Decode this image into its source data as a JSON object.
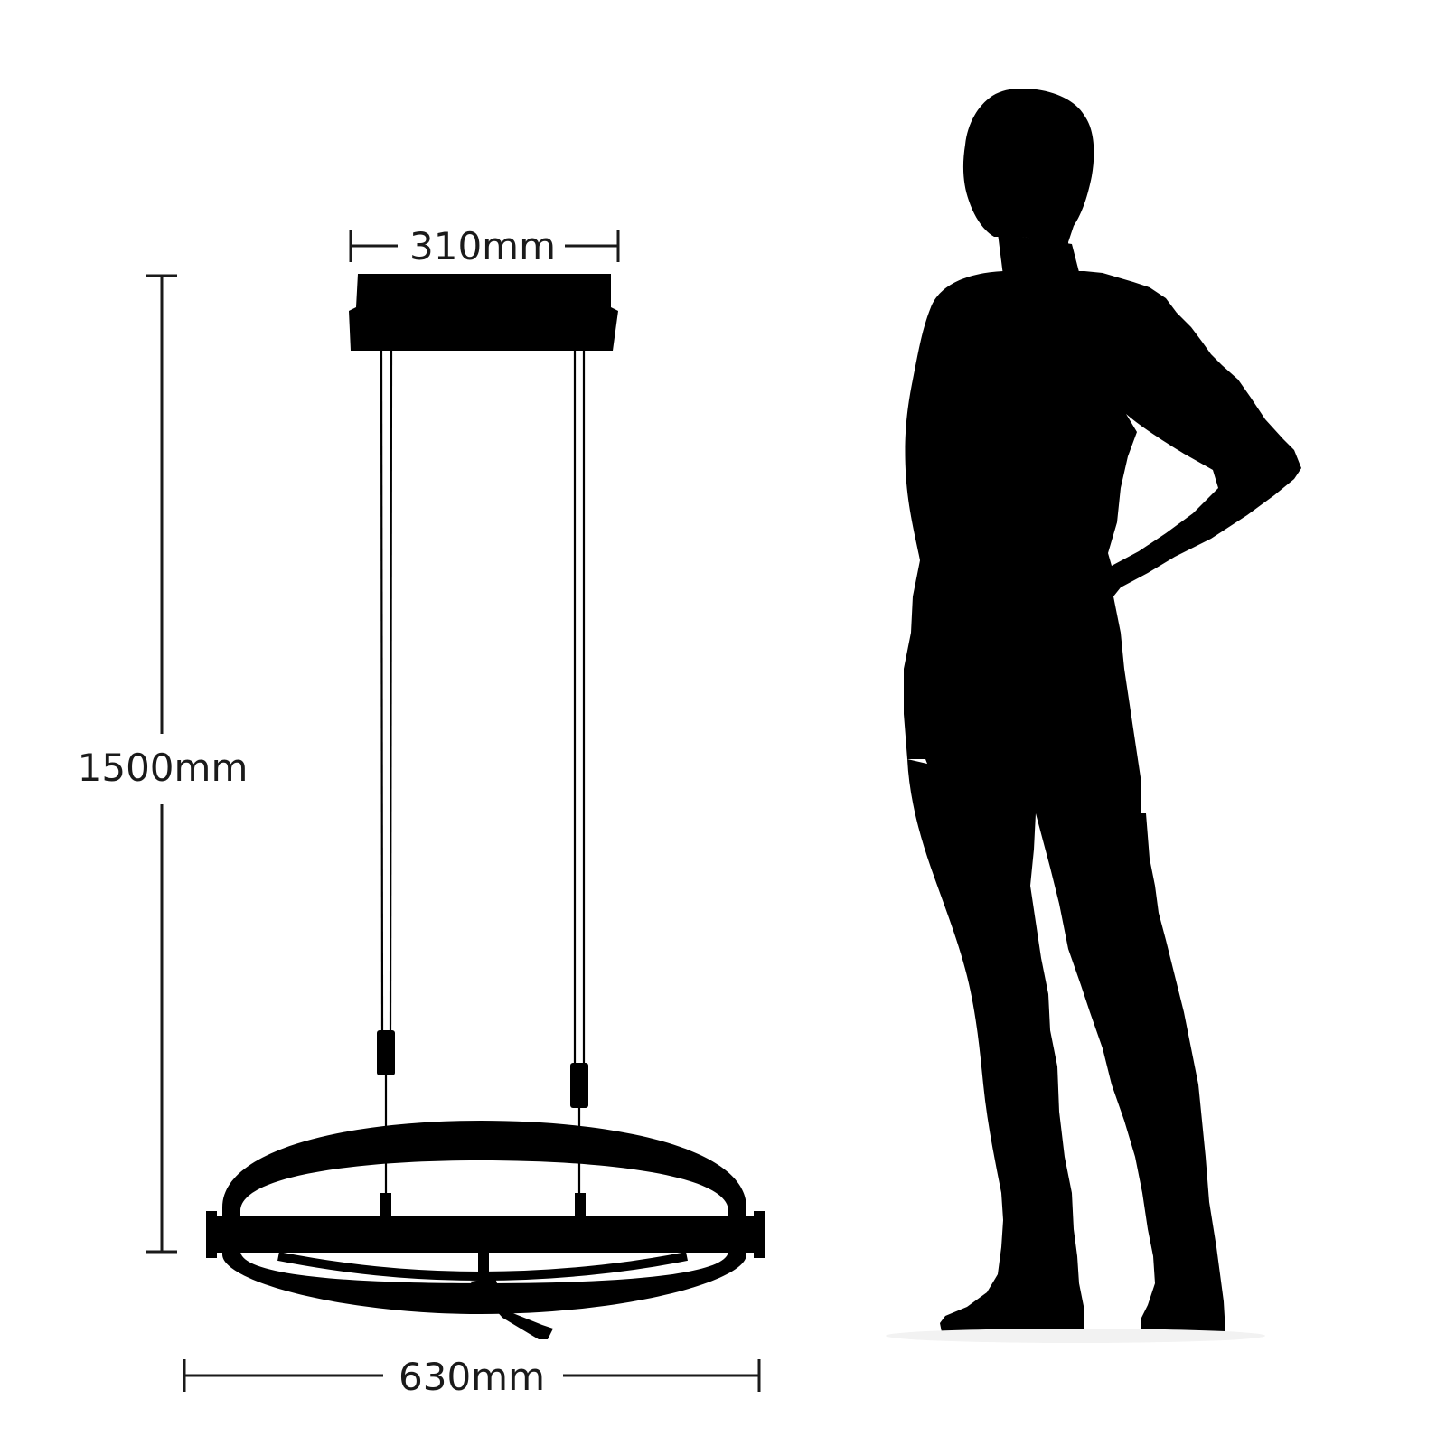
{
  "dimensions": {
    "canopy_width": "310mm",
    "overall_height": "1500mm",
    "ring_diameter": "630mm"
  },
  "colors": {
    "silhouette": "#000000",
    "dimension_line": "#1a1a1a",
    "label": "#1a1a1a",
    "background": "#ffffff"
  },
  "icons": {
    "person": "person-silhouette-icon",
    "lamp": "pendant-lamp-icon"
  }
}
